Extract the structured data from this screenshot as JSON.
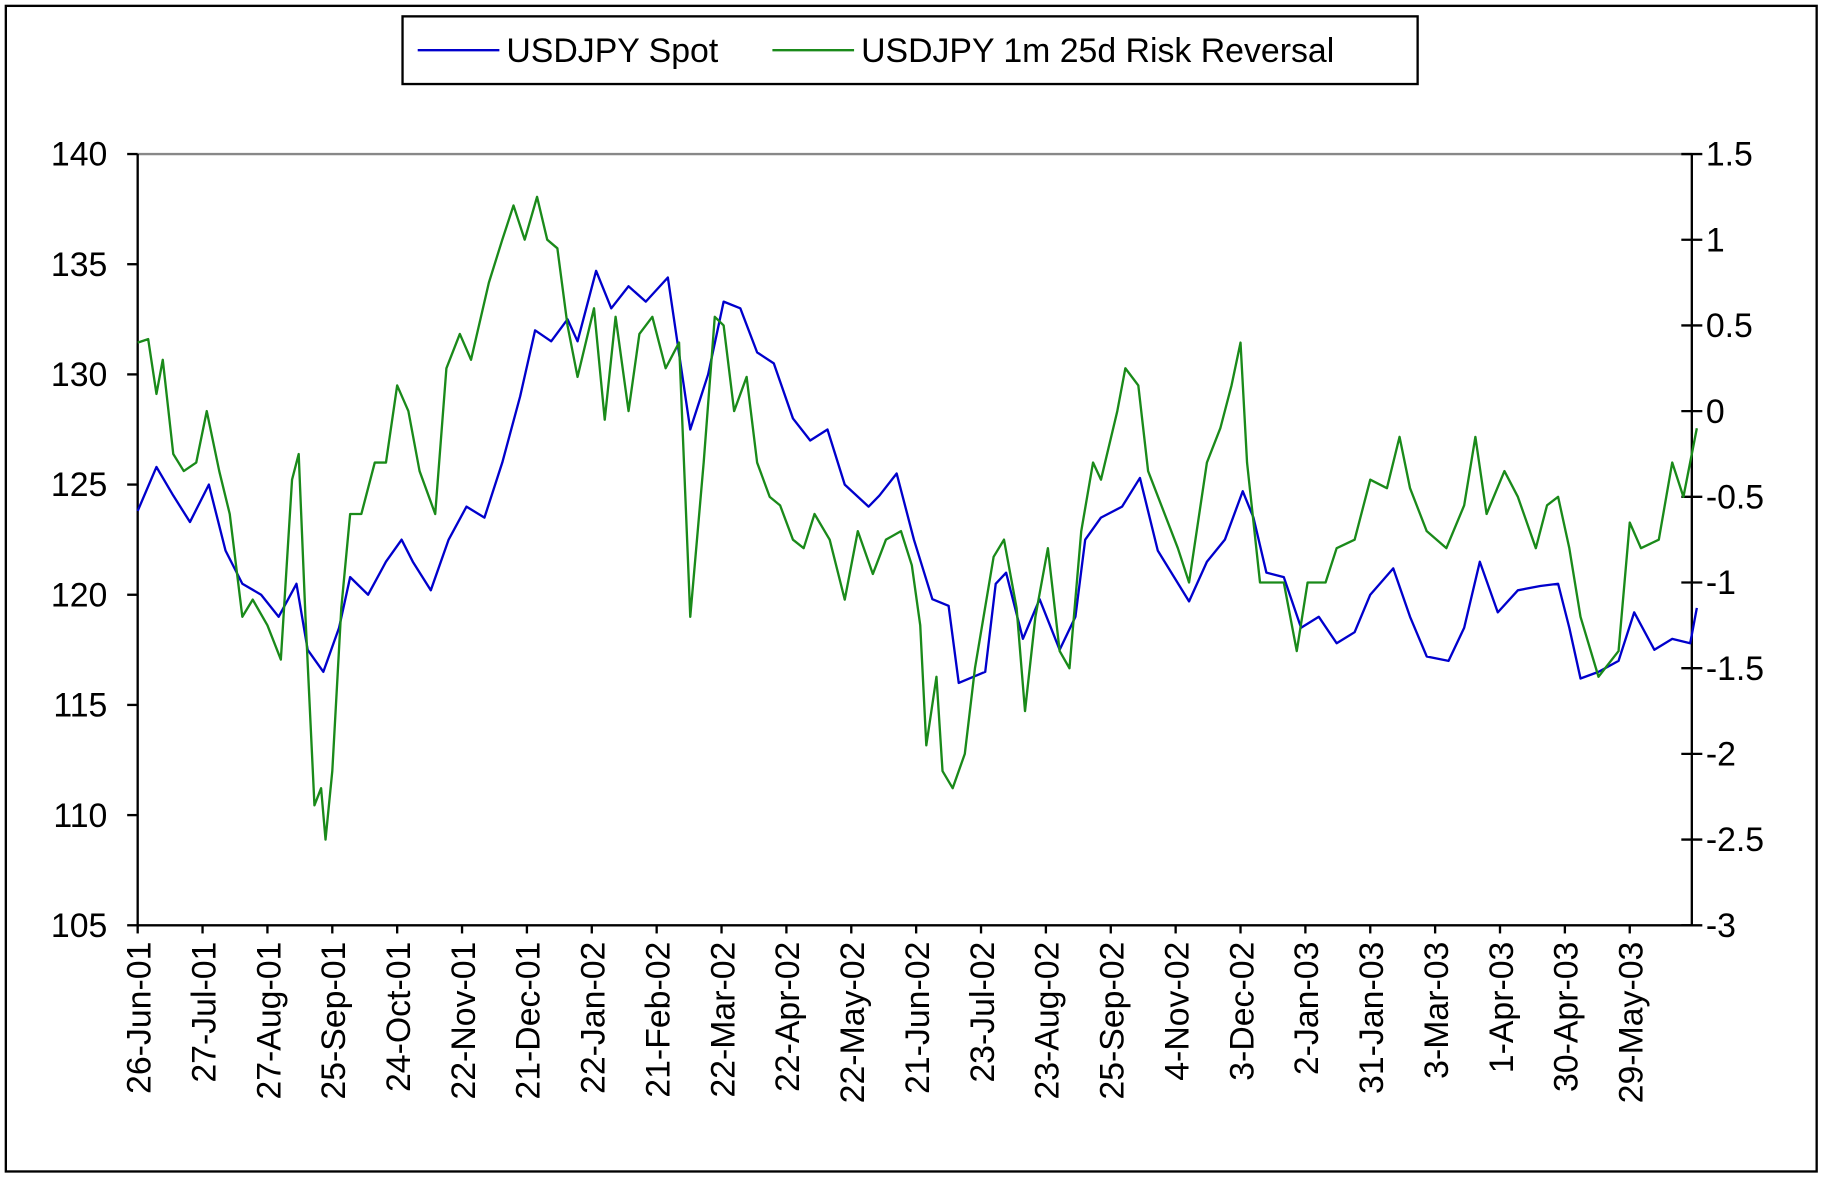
{
  "chart_data": {
    "type": "line",
    "title": "",
    "legend": {
      "placement": "top-center",
      "entries": [
        "USDJPY Spot",
        "USDJPY 1m 25d Risk Reversal"
      ]
    },
    "grid": false,
    "x_axis": {
      "type": "date",
      "tick_labels": [
        "26-Jun-01",
        "27-Jul-01",
        "27-Aug-01",
        "25-Sep-01",
        "24-Oct-01",
        "22-Nov-01",
        "21-Dec-01",
        "22-Jan-02",
        "21-Feb-02",
        "22-Mar-02",
        "22-Apr-02",
        "22-May-02",
        "21-Jun-02",
        "23-Jul-02",
        "23-Aug-02",
        "25-Sep-02",
        "4-Nov-02",
        "3-Dec-02",
        "2-Jan-03",
        "31-Jan-03",
        "3-Mar-03",
        "1-Apr-03",
        "30-Apr-03",
        "29-May-03"
      ],
      "tick_dates": [
        "2001-06-26",
        "2001-07-27",
        "2001-08-27",
        "2001-09-25",
        "2001-10-24",
        "2001-11-22",
        "2001-12-21",
        "2002-01-22",
        "2002-02-21",
        "2002-03-22",
        "2002-04-22",
        "2002-05-22",
        "2002-06-21",
        "2002-07-23",
        "2002-08-23",
        "2002-09-25",
        "2002-11-04",
        "2002-12-03",
        "2003-01-02",
        "2003-01-31",
        "2003-03-03",
        "2003-04-01",
        "2003-04-30",
        "2003-05-29"
      ],
      "range": [
        "2001-06-26",
        "2003-06-28"
      ]
    },
    "y_left": {
      "ylim": [
        105,
        140
      ],
      "ticks": [
        "105",
        "110",
        "115",
        "120",
        "125",
        "130",
        "135",
        "140"
      ]
    },
    "y_right": {
      "ylim": [
        -3,
        1.5
      ],
      "ticks": [
        "-3",
        "-2.5",
        "-2",
        "-1.5",
        "-1",
        "-0.5",
        "0",
        "0.5",
        "1",
        "1.5"
      ]
    },
    "series": [
      {
        "name": "USDJPY Spot",
        "axis": "left",
        "color": "#0000cc",
        "points": [
          [
            "2001-06-26",
            123.8
          ],
          [
            "2001-07-05",
            125.8
          ],
          [
            "2001-07-13",
            124.5
          ],
          [
            "2001-07-21",
            123.3
          ],
          [
            "2001-07-30",
            125
          ],
          [
            "2001-08-07",
            122
          ],
          [
            "2001-08-15",
            120.5
          ],
          [
            "2001-08-24",
            120
          ],
          [
            "2001-09-01",
            119
          ],
          [
            "2001-09-09",
            120.5
          ],
          [
            "2001-09-14",
            117.5
          ],
          [
            "2001-09-21",
            116.5
          ],
          [
            "2001-09-28",
            118.5
          ],
          [
            "2001-10-03",
            120.8
          ],
          [
            "2001-10-11",
            120
          ],
          [
            "2001-10-19",
            121.5
          ],
          [
            "2001-10-26",
            122.5
          ],
          [
            "2001-10-31",
            121.5
          ],
          [
            "2001-11-08",
            120.2
          ],
          [
            "2001-11-16",
            122.5
          ],
          [
            "2001-11-24",
            124
          ],
          [
            "2001-12-02",
            123.5
          ],
          [
            "2001-12-10",
            126
          ],
          [
            "2001-12-18",
            129
          ],
          [
            "2001-12-25",
            132
          ],
          [
            "2002-01-02",
            131.5
          ],
          [
            "2002-01-10",
            132.5
          ],
          [
            "2002-01-15",
            131.5
          ],
          [
            "2002-01-24",
            134.7
          ],
          [
            "2002-01-31",
            133
          ],
          [
            "2002-02-08",
            134
          ],
          [
            "2002-02-16",
            133.3
          ],
          [
            "2002-02-26",
            134.4
          ],
          [
            "2002-03-08",
            127.5
          ],
          [
            "2002-03-16",
            130
          ],
          [
            "2002-03-23",
            133.3
          ],
          [
            "2002-03-31",
            133
          ],
          [
            "2002-04-08",
            131
          ],
          [
            "2002-04-16",
            130.5
          ],
          [
            "2002-04-25",
            128
          ],
          [
            "2002-05-03",
            127
          ],
          [
            "2002-05-11",
            127.5
          ],
          [
            "2002-05-19",
            125
          ],
          [
            "2002-05-30",
            124
          ],
          [
            "2002-06-04",
            124.5
          ],
          [
            "2002-06-12",
            125.5
          ],
          [
            "2002-06-20",
            122.5
          ],
          [
            "2002-06-29",
            119.8
          ],
          [
            "2002-07-07",
            119.5
          ],
          [
            "2002-07-12",
            116
          ],
          [
            "2002-07-25",
            116.5
          ],
          [
            "2002-07-30",
            120.5
          ],
          [
            "2002-08-04",
            121
          ],
          [
            "2002-08-12",
            118
          ],
          [
            "2002-08-20",
            119.8
          ],
          [
            "2002-08-30",
            117.5
          ],
          [
            "2002-09-07",
            119
          ],
          [
            "2002-09-12",
            122.5
          ],
          [
            "2002-09-20",
            123.5
          ],
          [
            "2002-10-02",
            124
          ],
          [
            "2002-10-13",
            125.3
          ],
          [
            "2002-10-24",
            122
          ],
          [
            "2002-11-10",
            119.7
          ],
          [
            "2002-11-18",
            121.5
          ],
          [
            "2002-11-26",
            122.5
          ],
          [
            "2002-12-04",
            124.7
          ],
          [
            "2002-12-09",
            123.5
          ],
          [
            "2002-12-15",
            121
          ],
          [
            "2002-12-23",
            120.8
          ],
          [
            "2002-12-31",
            118.5
          ],
          [
            "2003-01-08",
            119
          ],
          [
            "2003-01-16",
            117.8
          ],
          [
            "2003-01-24",
            118.3
          ],
          [
            "2003-01-31",
            120
          ],
          [
            "2003-02-11",
            121.2
          ],
          [
            "2003-02-19",
            119
          ],
          [
            "2003-02-27",
            117.2
          ],
          [
            "2003-03-09",
            117
          ],
          [
            "2003-03-16",
            118.5
          ],
          [
            "2003-03-23",
            121.5
          ],
          [
            "2003-03-31",
            119.2
          ],
          [
            "2003-04-09",
            120.2
          ],
          [
            "2003-04-19",
            120.4
          ],
          [
            "2003-04-27",
            120.5
          ],
          [
            "2003-05-02",
            118.5
          ],
          [
            "2003-05-07",
            116.2
          ],
          [
            "2003-05-15",
            116.5
          ],
          [
            "2003-05-24",
            117
          ],
          [
            "2003-05-31",
            119.2
          ],
          [
            "2003-06-09",
            117.5
          ],
          [
            "2003-06-17",
            118
          ],
          [
            "2003-06-25",
            117.8
          ],
          [
            "2003-06-28",
            119.4
          ]
        ]
      },
      {
        "name": "USDJPY 1m 25d Risk Reversal",
        "axis": "right",
        "color": "#1a8a1a",
        "points": [
          [
            "2001-06-26",
            0.4
          ],
          [
            "2001-07-01",
            0.42
          ],
          [
            "2001-07-05",
            0.1
          ],
          [
            "2001-07-08",
            0.3
          ],
          [
            "2001-07-13",
            -0.25
          ],
          [
            "2001-07-18",
            -0.35
          ],
          [
            "2001-07-24",
            -0.3
          ],
          [
            "2001-07-29",
            0.0
          ],
          [
            "2001-08-04",
            -0.35
          ],
          [
            "2001-08-09",
            -0.6
          ],
          [
            "2001-08-15",
            -1.2
          ],
          [
            "2001-08-20",
            -1.1
          ],
          [
            "2001-08-27",
            -1.25
          ],
          [
            "2001-09-02",
            -1.45
          ],
          [
            "2001-09-07",
            -0.4
          ],
          [
            "2001-09-10",
            -0.25
          ],
          [
            "2001-09-13",
            -1.2
          ],
          [
            "2001-09-17",
            -2.3
          ],
          [
            "2001-09-20",
            -2.2
          ],
          [
            "2001-09-22",
            -2.5
          ],
          [
            "2001-09-25",
            -2.1
          ],
          [
            "2001-09-29",
            -1.15
          ],
          [
            "2001-10-03",
            -0.6
          ],
          [
            "2001-10-08",
            -0.6
          ],
          [
            "2001-10-14",
            -0.3
          ],
          [
            "2001-10-19",
            -0.3
          ],
          [
            "2001-10-24",
            0.15
          ],
          [
            "2001-10-29",
            0.0
          ],
          [
            "2001-11-03",
            -0.35
          ],
          [
            "2001-11-10",
            -0.6
          ],
          [
            "2001-11-15",
            0.25
          ],
          [
            "2001-11-21",
            0.45
          ],
          [
            "2001-11-26",
            0.3
          ],
          [
            "2001-12-04",
            0.75
          ],
          [
            "2001-12-10",
            1.0
          ],
          [
            "2001-12-15",
            1.2
          ],
          [
            "2001-12-20",
            1.0
          ],
          [
            "2001-12-26",
            1.25
          ],
          [
            "2001-12-31",
            1.0
          ],
          [
            "2002-01-05",
            0.95
          ],
          [
            "2002-01-10",
            0.5
          ],
          [
            "2002-01-15",
            0.2
          ],
          [
            "2002-01-23",
            0.6
          ],
          [
            "2002-01-28",
            -0.05
          ],
          [
            "2002-02-02",
            0.55
          ],
          [
            "2002-02-08",
            0.0
          ],
          [
            "2002-02-13",
            0.45
          ],
          [
            "2002-02-19",
            0.55
          ],
          [
            "2002-02-25",
            0.25
          ],
          [
            "2002-03-03",
            0.4
          ],
          [
            "2002-03-08",
            -1.2
          ],
          [
            "2002-03-14",
            -0.3
          ],
          [
            "2002-03-19",
            0.55
          ],
          [
            "2002-03-23",
            0.5
          ],
          [
            "2002-03-28",
            0.0
          ],
          [
            "2002-04-03",
            0.2
          ],
          [
            "2002-04-08",
            -0.3
          ],
          [
            "2002-04-14",
            -0.5
          ],
          [
            "2002-04-19",
            -0.55
          ],
          [
            "2002-04-25",
            -0.75
          ],
          [
            "2002-04-30",
            -0.8
          ],
          [
            "2002-05-05",
            -0.6
          ],
          [
            "2002-05-12",
            -0.75
          ],
          [
            "2002-05-19",
            -1.1
          ],
          [
            "2002-05-25",
            -0.7
          ],
          [
            "2002-06-01",
            -0.95
          ],
          [
            "2002-06-07",
            -0.75
          ],
          [
            "2002-06-14",
            -0.7
          ],
          [
            "2002-06-19",
            -0.9
          ],
          [
            "2002-06-23",
            -1.25
          ],
          [
            "2002-06-26",
            -1.95
          ],
          [
            "2002-07-01",
            -1.55
          ],
          [
            "2002-07-04",
            -2.1
          ],
          [
            "2002-07-09",
            -2.2
          ],
          [
            "2002-07-15",
            -2.0
          ],
          [
            "2002-07-20",
            -1.5
          ],
          [
            "2002-07-29",
            -0.85
          ],
          [
            "2002-08-03",
            -0.75
          ],
          [
            "2002-08-09",
            -1.15
          ],
          [
            "2002-08-13",
            -1.75
          ],
          [
            "2002-08-18",
            -1.2
          ],
          [
            "2002-08-24",
            -0.8
          ],
          [
            "2002-08-30",
            -1.4
          ],
          [
            "2002-09-04",
            -1.5
          ],
          [
            "2002-09-10",
            -0.7
          ],
          [
            "2002-09-16",
            -0.3
          ],
          [
            "2002-09-20",
            -0.4
          ],
          [
            "2002-09-29",
            0.0
          ],
          [
            "2002-10-04",
            0.25
          ],
          [
            "2002-10-12",
            0.15
          ],
          [
            "2002-10-18",
            -0.35
          ],
          [
            "2002-11-05",
            -0.8
          ],
          [
            "2002-11-10",
            -1.0
          ],
          [
            "2002-11-18",
            -0.3
          ],
          [
            "2002-11-24",
            -0.1
          ],
          [
            "2002-11-29",
            0.15
          ],
          [
            "2002-12-03",
            0.4
          ],
          [
            "2002-12-06",
            -0.3
          ],
          [
            "2002-12-12",
            -1.0
          ],
          [
            "2002-12-23",
            -1.0
          ],
          [
            "2002-12-29",
            -1.4
          ],
          [
            "2003-01-03",
            -1.0
          ],
          [
            "2003-01-11",
            -1.0
          ],
          [
            "2003-01-16",
            -0.8
          ],
          [
            "2003-01-24",
            -0.75
          ],
          [
            "2003-01-31",
            -0.4
          ],
          [
            "2003-02-08",
            -0.45
          ],
          [
            "2003-02-14",
            -0.15
          ],
          [
            "2003-02-19",
            -0.45
          ],
          [
            "2003-02-27",
            -0.7
          ],
          [
            "2003-03-08",
            -0.8
          ],
          [
            "2003-03-16",
            -0.55
          ],
          [
            "2003-03-21",
            -0.15
          ],
          [
            "2003-03-26",
            -0.6
          ],
          [
            "2003-04-03",
            -0.35
          ],
          [
            "2003-04-09",
            -0.5
          ],
          [
            "2003-04-17",
            -0.8
          ],
          [
            "2003-04-22",
            -0.55
          ],
          [
            "2003-04-27",
            -0.5
          ],
          [
            "2003-05-02",
            -0.8
          ],
          [
            "2003-05-07",
            -1.2
          ],
          [
            "2003-05-15",
            -1.55
          ],
          [
            "2003-05-24",
            -1.4
          ],
          [
            "2003-05-29",
            -0.65
          ],
          [
            "2003-06-03",
            -0.8
          ],
          [
            "2003-06-11",
            -0.75
          ],
          [
            "2003-06-17",
            -0.3
          ],
          [
            "2003-06-22",
            -0.5
          ],
          [
            "2003-06-28",
            -0.1
          ]
        ]
      }
    ]
  }
}
